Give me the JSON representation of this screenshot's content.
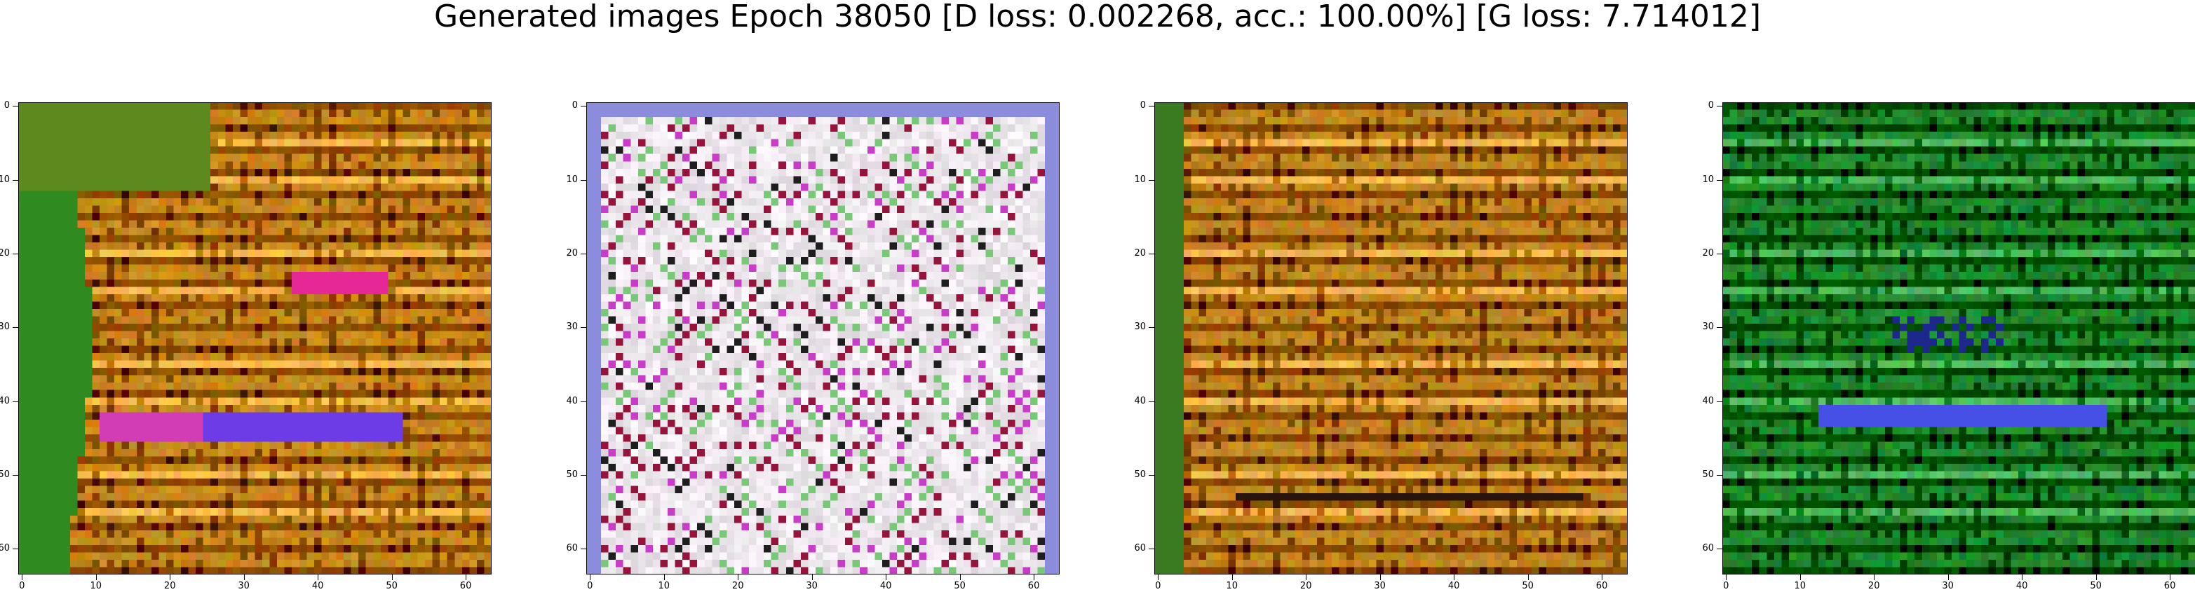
{
  "figure": {
    "title": "Generated images Epoch 38050 [D loss: 0.002268, acc.: 100.00%] [G loss: 7.714012]"
  },
  "axes": {
    "x_ticks": [
      "0",
      "10",
      "20",
      "30",
      "40",
      "50",
      "60"
    ],
    "y_ticks": [
      "0",
      "10",
      "20",
      "30",
      "40",
      "50",
      "60"
    ],
    "range": [
      0,
      63
    ]
  },
  "panels": [
    {
      "palette": "orange-gold with green left edge",
      "highlight": "magenta/blue streaks",
      "base": "#c98a1c",
      "accent": "#2f8a1f"
    },
    {
      "palette": "white/lavender checker noise",
      "highlight": "magenta/maroon dots",
      "base": "#ece6f4",
      "accent": "#9b1c6a"
    },
    {
      "palette": "orange-gold with green left edge",
      "highlight": "dark horizontal bands",
      "base": "#c48820",
      "accent": "#3a7a20"
    },
    {
      "palette": "green/teal",
      "highlight": "blue streak",
      "base": "#1f8a2e",
      "accent": "#3b4fd6"
    }
  ]
}
